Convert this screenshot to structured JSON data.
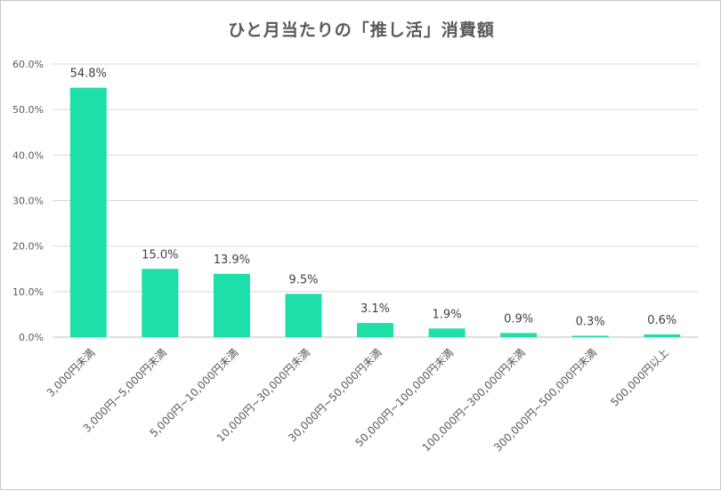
{
  "chart_data": {
    "type": "bar",
    "title": "ひと月当たりの「推し活」消費額",
    "categories": [
      "3,000円未満",
      "3,000円~5,000円未満",
      "5,000円~10,000円未満",
      "10,000円~30,000円未満",
      "30,000円~50,000円未満",
      "50,000円~100,000円未満",
      "100,000円~300,000円未満",
      "300,000円~500,000円未満",
      "500,000円以上"
    ],
    "values": [
      54.8,
      15.0,
      13.9,
      9.5,
      3.1,
      1.9,
      0.9,
      0.3,
      0.6
    ],
    "data_labels": [
      "54.8%",
      "15.0%",
      "13.9%",
      "9.5%",
      "3.1%",
      "1.9%",
      "0.9%",
      "0.3%",
      "0.6%"
    ],
    "yticks": [
      "0.0%",
      "10.0%",
      "20.0%",
      "30.0%",
      "40.0%",
      "50.0%",
      "60.0%"
    ],
    "ylim": [
      0,
      60
    ],
    "xlabel": "",
    "ylabel": "",
    "grid": true,
    "bar_color": "#1de0a8",
    "grid_color": "#d9d9d9"
  }
}
